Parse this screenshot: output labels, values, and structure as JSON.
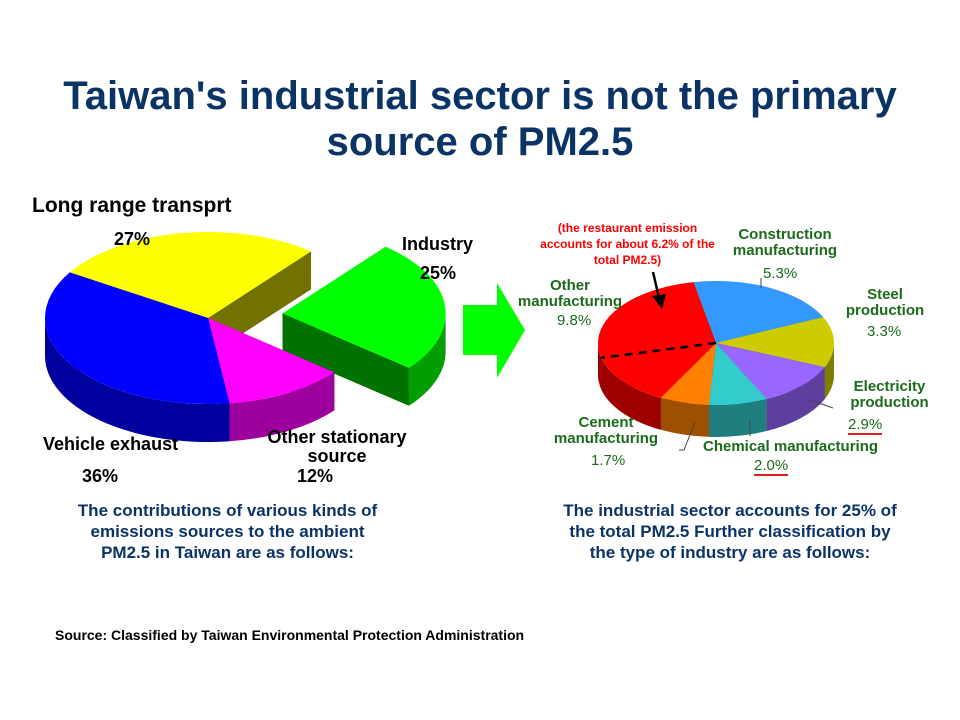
{
  "title": {
    "line1": "Taiwan's industrial sector is not the primary",
    "line2": "source of PM2.5"
  },
  "chart_data": [
    {
      "type": "pie",
      "style": "3d-exploded",
      "slices": [
        {
          "label": "Long range transprt",
          "value": 27,
          "pct_label": "27%",
          "color": "#ffff00"
        },
        {
          "label": "Industry",
          "value": 25,
          "pct_label": "25%",
          "color": "#00ff00",
          "exploded": true
        },
        {
          "label": "Other stationary source",
          "value": 12,
          "pct_label": "12%",
          "color": "#ff00ff"
        },
        {
          "label": "Vehicle exhaust",
          "value": 36,
          "pct_label": "36%",
          "color": "#0000ff"
        }
      ],
      "caption": "The contributions of various kinds of emissions sources to the ambient PM2.5 in Taiwan are as follows:"
    },
    {
      "type": "pie",
      "style": "3d",
      "slices": [
        {
          "label": "Construction manufacturing",
          "value": 5.3,
          "pct_label": "5.3%",
          "color": "#3399ff"
        },
        {
          "label": "Steel production",
          "value": 3.3,
          "pct_label": "3.3%",
          "color": "#cccc00"
        },
        {
          "label": "Electricity production",
          "value": 2.9,
          "pct_label": "2.9%",
          "color": "#9966ff"
        },
        {
          "label": "Chemical manufacturing",
          "value": 2.0,
          "pct_label": "2.0%",
          "color": "#33cccc"
        },
        {
          "label": "Cement manufacturing",
          "value": 1.7,
          "pct_label": "1.7%",
          "color": "#ff8000"
        },
        {
          "label": "Other manufacturing",
          "value": 9.8,
          "pct_label": "9.8%",
          "color": "#ff0000"
        }
      ],
      "annotation": "(the restaurant emission accounts for about 6.2% of the total PM2.5)",
      "caption": "The industrial sector accounts for 25% of the total PM2.5 Further classification by the type of industry are as follows:"
    }
  ],
  "arrow_color": "#00ff00",
  "source": "Source: Classified by Taiwan Environmental Protection Administration"
}
